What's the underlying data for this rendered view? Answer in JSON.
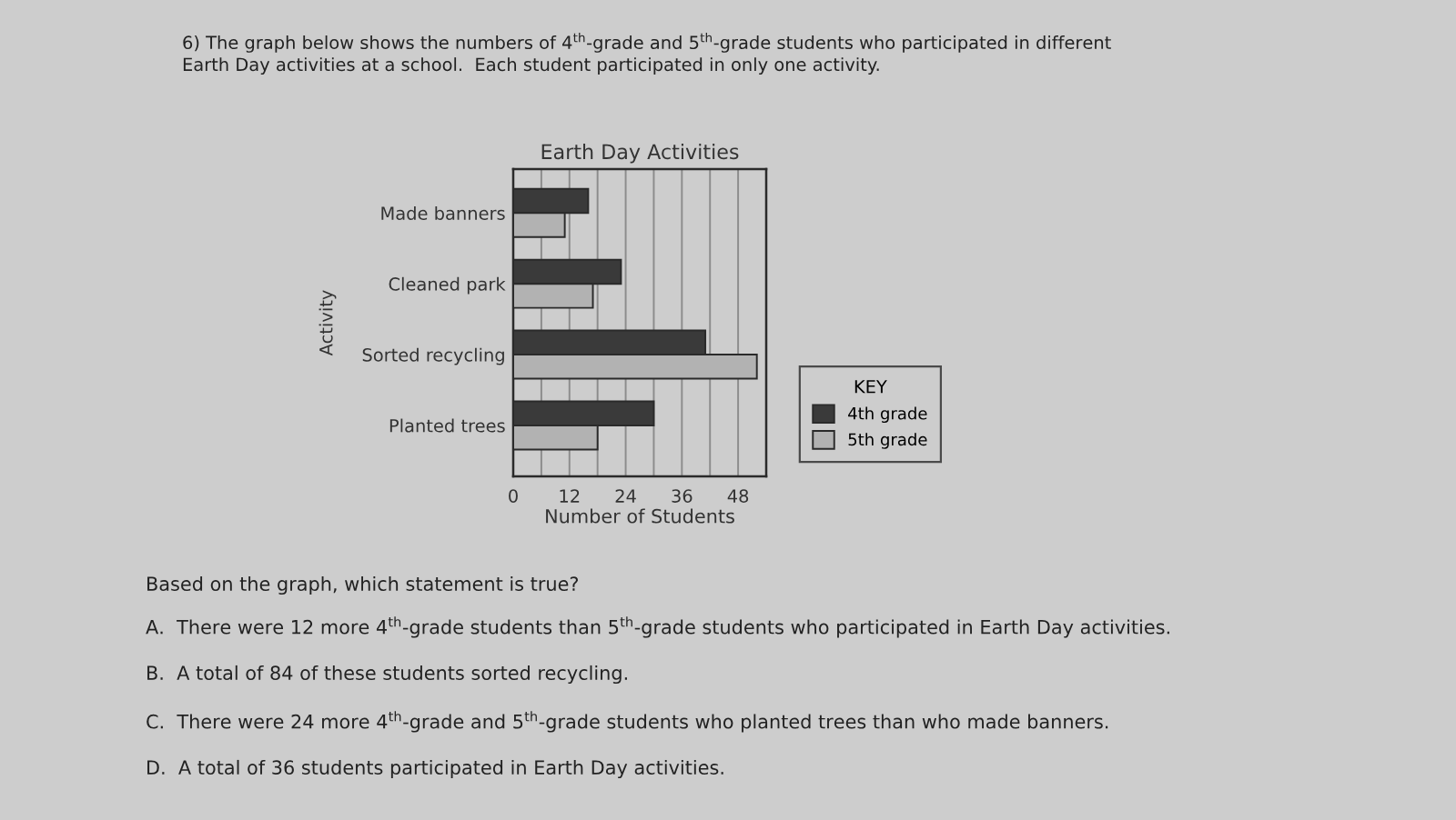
{
  "chart_data": {
    "type": "bar",
    "orientation": "horizontal",
    "title": "Earth Day Activities",
    "xlabel": "Number of Students",
    "ylabel": "Activity",
    "categories": [
      "Made banners",
      "Cleaned park",
      "Sorted recycling",
      "Planted trees"
    ],
    "series": [
      {
        "name": "4th grade",
        "color": "#3a3a3a",
        "values": [
          16,
          23,
          41,
          30
        ]
      },
      {
        "name": "5th grade",
        "color": "#b2b2b2",
        "values": [
          11,
          17,
          52,
          18
        ]
      }
    ],
    "xlim": [
      0,
      54
    ],
    "xticks": [
      0,
      {
        "value": 6,
        "label": null
      },
      12,
      {
        "value": 18,
        "label": null
      },
      24,
      {
        "value": 30,
        "label": null
      },
      36,
      {
        "value": 42,
        "label": null
      },
      48
    ],
    "grid": "x",
    "legend": "right",
    "legend_title": "KEY",
    "annotations": [
      "6) The graph below shows the numbers of 4$^{th}$-grade and 5$^{th}$-grade students who participated in different\nEarth Day activities at a school.  Each student participated in only one activity.",
      "Based on the graph, which statement is true?",
      "A.  There were 12 more 4$^{th}$-grade students than 5$^{th}$-grade students who participated in Earth Day activities.",
      "B.  A total of 84 of these students sorted recycling.",
      "C.  There were 24 more 4$^{th}$-grade and 5$^{th}$-grade students who planted trees than who made banners.",
      "D.  A total of 36 students participated in Earth Day activities."
    ]
  }
}
